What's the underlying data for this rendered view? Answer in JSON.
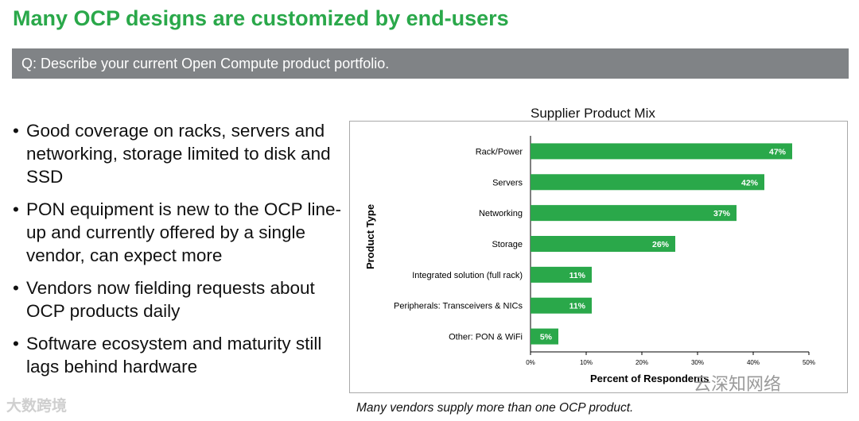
{
  "slide": {
    "title": "Many OCP designs are customized by end-users",
    "question": "Q: Describe your current Open Compute product portfolio.",
    "bullets": [
      "Good coverage on racks, servers and networking, storage limited to disk and SSD",
      "PON equipment is new to the OCP line-up and currently offered by a single vendor, can expect more",
      "Vendors now fielding requests about OCP products daily",
      "Software ecosystem and maturity still lags behind hardware"
    ],
    "bullet_symbol": "•",
    "caption": "Many vendors supply more than one OCP product.",
    "watermark_left": "大数跨境",
    "watermark_right": "云深知网络"
  },
  "colors": {
    "title": "#2aa84a",
    "bar": "#2aa84a",
    "question_bg": "#808386"
  },
  "chart_data": {
    "type": "bar",
    "orientation": "horizontal",
    "title": "Supplier Product Mix",
    "xlabel": "Percent of Respondents",
    "ylabel": "Product Type",
    "categories": [
      "Rack/Power",
      "Servers",
      "Networking",
      "Storage",
      "Integrated solution (full rack)",
      "Peripherals: Transceivers & NICs",
      "Other: PON & WiFi"
    ],
    "values": [
      47,
      42,
      37,
      26,
      11,
      11,
      5
    ],
    "value_labels": [
      "47%",
      "42%",
      "37%",
      "26%",
      "11%",
      "11%",
      "5%"
    ],
    "xlim": [
      0,
      50
    ],
    "xticks": [
      0,
      10,
      20,
      30,
      40,
      50
    ],
    "xtick_labels": [
      "0%",
      "10%",
      "20%",
      "30%",
      "40%",
      "50%"
    ],
    "grid": false,
    "legend": "none"
  }
}
